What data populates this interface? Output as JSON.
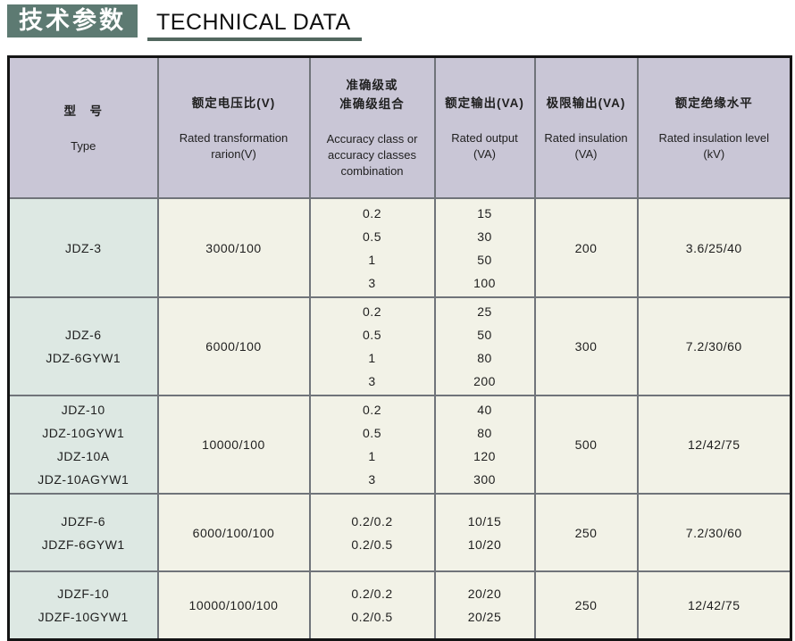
{
  "page": {
    "title_zh": "技术参数",
    "title_en": "TECHNICAL DATA"
  },
  "colors": {
    "banner_bg": "#5d7a72",
    "underline": "#52675f",
    "header_bg": "#c9c6d6",
    "type_col_bg": "#dde8e3",
    "cell_bg": "#f2f2e7"
  },
  "table": {
    "columns": [
      {
        "id": "type",
        "zh": "型　号",
        "en": "Type"
      },
      {
        "id": "voltage",
        "zh": "额定电压比(V)",
        "en": "Rated transformation\nrarion(V)"
      },
      {
        "id": "accuracy",
        "zh": "准确级或\n准确级组合",
        "en": "Accuracy class or\naccuracy classes\ncombination"
      },
      {
        "id": "rated_output",
        "zh": "额定输出(VA)",
        "en": "Rated output\n(VA)"
      },
      {
        "id": "limit_output",
        "zh": "极限输出(VA)",
        "en": "Rated insulation\n(VA)"
      },
      {
        "id": "insulation",
        "zh": "额定绝缘水平",
        "en": "Rated insulation level\n(kV)"
      }
    ],
    "rows": [
      {
        "type": [
          "JDZ-3"
        ],
        "voltage": "3000/100",
        "accuracy": [
          "0.2",
          "0.5",
          "1",
          "3"
        ],
        "rated_output": [
          "15",
          "30",
          "50",
          "100"
        ],
        "limit_output": "200",
        "insulation": "3.6/25/40"
      },
      {
        "type": [
          "JDZ-6",
          "JDZ-6GYW1"
        ],
        "voltage": "6000/100",
        "accuracy": [
          "0.2",
          "0.5",
          "1",
          "3"
        ],
        "rated_output": [
          "25",
          "50",
          "80",
          "200"
        ],
        "limit_output": "300",
        "insulation": "7.2/30/60"
      },
      {
        "type": [
          "JDZ-10",
          "JDZ-10GYW1",
          "JDZ-10A",
          "JDZ-10AGYW1"
        ],
        "voltage": "10000/100",
        "accuracy": [
          "0.2",
          "0.5",
          "1",
          "3"
        ],
        "rated_output": [
          "40",
          "80",
          "120",
          "300"
        ],
        "limit_output": "500",
        "insulation": "12/42/75"
      },
      {
        "type": [
          "JDZF-6",
          "JDZF-6GYW1"
        ],
        "voltage": "6000/100/100",
        "accuracy": [
          "0.2/0.2",
          "0.2/0.5"
        ],
        "rated_output": [
          "10/15",
          "10/20"
        ],
        "limit_output": "250",
        "insulation": "7.2/30/60"
      },
      {
        "type": [
          "JDZF-10",
          "JDZF-10GYW1"
        ],
        "voltage": "10000/100/100",
        "accuracy": [
          "0.2/0.2",
          "0.2/0.5"
        ],
        "rated_output": [
          "20/20",
          "20/25"
        ],
        "limit_output": "250",
        "insulation": "12/42/75"
      }
    ]
  }
}
